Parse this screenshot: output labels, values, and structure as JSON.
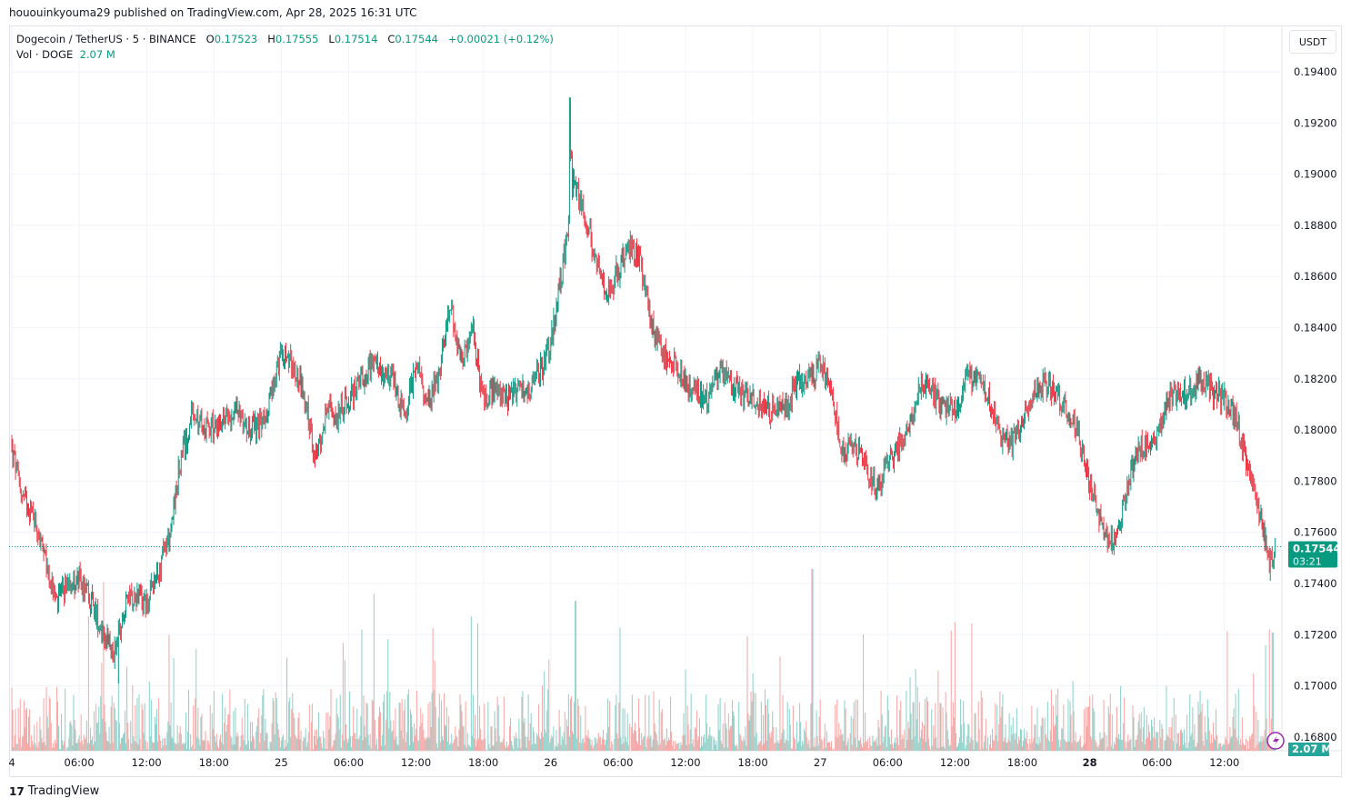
{
  "publisher_line": "hououinkyouma29 published on TradingView.com, Apr 28, 2025 16:31 UTC",
  "legend": {
    "symbol": "Dogecoin / TetherUS · 5 · BINANCE",
    "o_label": "O",
    "o": "0.17523",
    "h_label": "H",
    "h": "0.17555",
    "l_label": "L",
    "l": "0.17514",
    "c_label": "C",
    "c": "0.17544",
    "change": "+0.00021 (+0.12%)",
    "vol_label": "Vol · DOGE",
    "vol": "2.07 M"
  },
  "currency_button": "USDT",
  "last_price_tag": {
    "price": "0.17544",
    "countdown": "03:21"
  },
  "volume_tag": "2.07 M",
  "branding": "TradingView",
  "colors": {
    "up": "#089981",
    "down": "#f23645",
    "vol_up": "#8fd3cb",
    "vol_down": "#f7a9a8",
    "grid": "#f0f3fa",
    "last_price": "#089981"
  },
  "chart_data": {
    "type": "candlestick",
    "interval": "5 min",
    "price_ticks": [
      "0.19400",
      "0.19200",
      "0.19000",
      "0.18800",
      "0.18600",
      "0.18400",
      "0.18200",
      "0.18000",
      "0.17800",
      "0.17600",
      "0.17400",
      "0.17200",
      "0.17000",
      "0.16800"
    ],
    "ylim": [
      0.168,
      0.194
    ],
    "time_ticks": [
      {
        "label": "4",
        "hour": 0,
        "bold": false
      },
      {
        "label": "06:00",
        "hour": 6
      },
      {
        "label": "12:00",
        "hour": 12
      },
      {
        "label": "18:00",
        "hour": 18
      },
      {
        "label": "25",
        "hour": 24
      },
      {
        "label": "06:00",
        "hour": 30
      },
      {
        "label": "12:00",
        "hour": 36
      },
      {
        "label": "18:00",
        "hour": 42
      },
      {
        "label": "26",
        "hour": 48
      },
      {
        "label": "06:00",
        "hour": 54
      },
      {
        "label": "12:00",
        "hour": 60
      },
      {
        "label": "18:00",
        "hour": 66
      },
      {
        "label": "27",
        "hour": 72
      },
      {
        "label": "06:00",
        "hour": 78
      },
      {
        "label": "12:00",
        "hour": 84
      },
      {
        "label": "18:00",
        "hour": 90
      },
      {
        "label": "28",
        "hour": 96,
        "bold": true
      },
      {
        "label": "06:00",
        "hour": 102
      },
      {
        "label": "12:00",
        "hour": 108
      }
    ],
    "hourly_close_approx": [
      0.1792,
      0.1773,
      0.1767,
      0.1748,
      0.1732,
      0.1741,
      0.1741,
      0.1734,
      0.1723,
      0.1712,
      0.173,
      0.1737,
      0.1732,
      0.1743,
      0.1759,
      0.1787,
      0.1805,
      0.1801,
      0.1801,
      0.1805,
      0.1808,
      0.1801,
      0.1801,
      0.1812,
      0.183,
      0.1826,
      0.1815,
      0.1787,
      0.1808,
      0.1805,
      0.1812,
      0.1819,
      0.1826,
      0.1822,
      0.1819,
      0.1805,
      0.1826,
      0.1812,
      0.1819,
      0.1851,
      0.1826,
      0.184,
      0.1812,
      0.1815,
      0.1812,
      0.1815,
      0.1815,
      0.1822,
      0.1833,
      0.1862,
      0.1897,
      0.1886,
      0.1865,
      0.1854,
      0.1862,
      0.1872,
      0.1865,
      0.184,
      0.183,
      0.1826,
      0.1819,
      0.1815,
      0.1812,
      0.1822,
      0.1819,
      0.1815,
      0.1812,
      0.1808,
      0.1808,
      0.1808,
      0.1819,
      0.1819,
      0.1826,
      0.1812,
      0.1791,
      0.1794,
      0.1787,
      0.1776,
      0.1787,
      0.1794,
      0.1801,
      0.1819,
      0.1815,
      0.1808,
      0.1808,
      0.1819,
      0.1822,
      0.1812,
      0.1798,
      0.1794,
      0.1805,
      0.1815,
      0.1819,
      0.1815,
      0.1808,
      0.1798,
      0.178,
      0.1762,
      0.1755,
      0.1769,
      0.1791,
      0.1794,
      0.1798,
      0.1812,
      0.1815,
      0.1815,
      0.1819,
      0.1815,
      0.1812,
      0.1805,
      0.1787,
      0.1769,
      0.1748,
      0.17544
    ],
    "session_high": 0.193,
    "session_low": 0.1701,
    "last_price": 0.17544
  }
}
